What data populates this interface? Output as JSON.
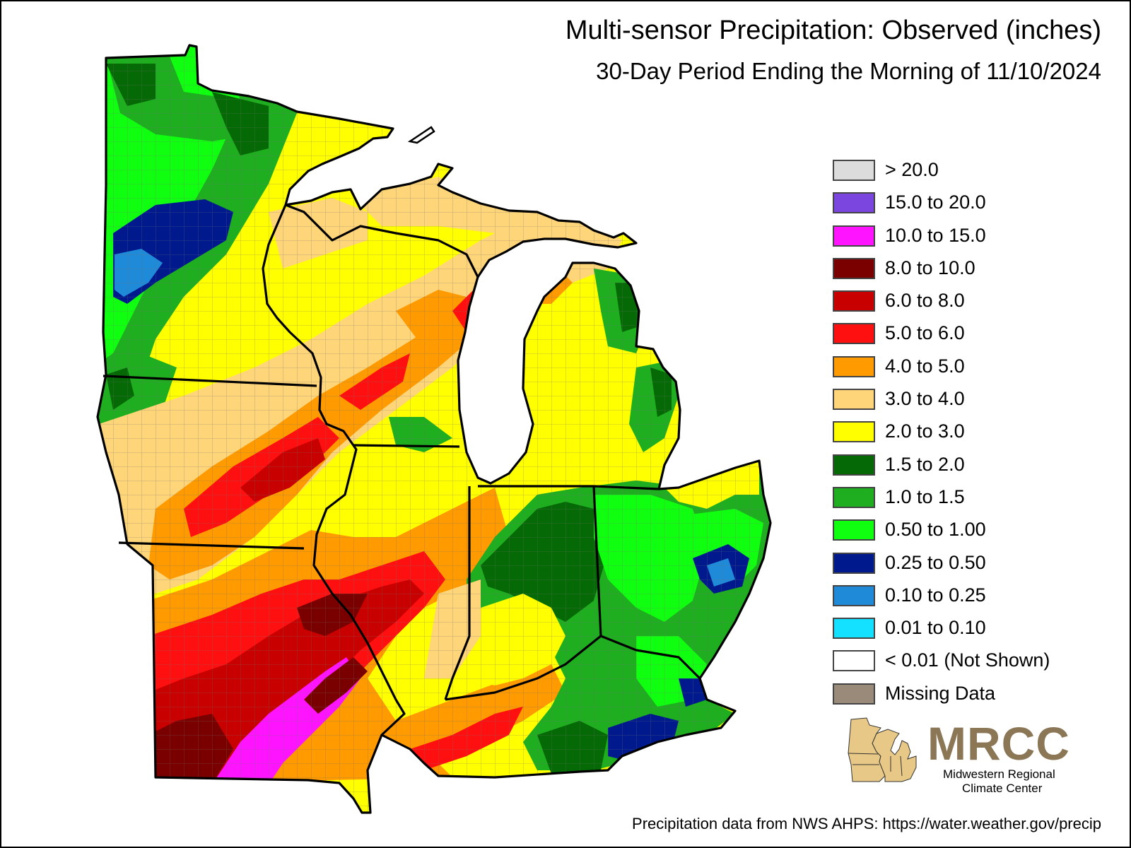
{
  "title": "Multi-sensor Precipitation: Observed (inches)",
  "subtitle": "30-Day Period Ending the Morning of 11/10/2024",
  "legend": [
    {
      "label": "> 20.0",
      "color": "#dcdcdc"
    },
    {
      "label": "15.0 to 20.0",
      "color": "#7b46e0"
    },
    {
      "label": "10.0 to 15.0",
      "color": "#ff14ff"
    },
    {
      "label": "8.0 to 10.0",
      "color": "#7a0000"
    },
    {
      "label": "6.0 to 8.0",
      "color": "#c80000"
    },
    {
      "label": "5.0 to 6.0",
      "color": "#ff1010"
    },
    {
      "label": "4.0 to 5.0",
      "color": "#ff9a00"
    },
    {
      "label": "3.0 to 4.0",
      "color": "#ffd57a"
    },
    {
      "label": "2.0 to 3.0",
      "color": "#ffff00"
    },
    {
      "label": "1.5 to 2.0",
      "color": "#056a05"
    },
    {
      "label": "1.0 to 1.5",
      "color": "#1fae1f"
    },
    {
      "label": "0.50 to 1.00",
      "color": "#10ff10"
    },
    {
      "label": "0.25 to 0.50",
      "color": "#001a8e"
    },
    {
      "label": "0.10 to 0.25",
      "color": "#1f8bd8"
    },
    {
      "label": "0.01 to 0.10",
      "color": "#14e0ff"
    },
    {
      "label": "< 0.01 (Not Shown)",
      "color": "#ffffff"
    },
    {
      "label": "Missing Data",
      "color": "#9a8a7a"
    }
  ],
  "logo": {
    "text": "MRCC",
    "line1": "Midwestern Regional",
    "line2": "Climate Center",
    "color": "#8b7655"
  },
  "source": "Precipitation data from NWS AHPS: https://water.weather.gov/precip"
}
